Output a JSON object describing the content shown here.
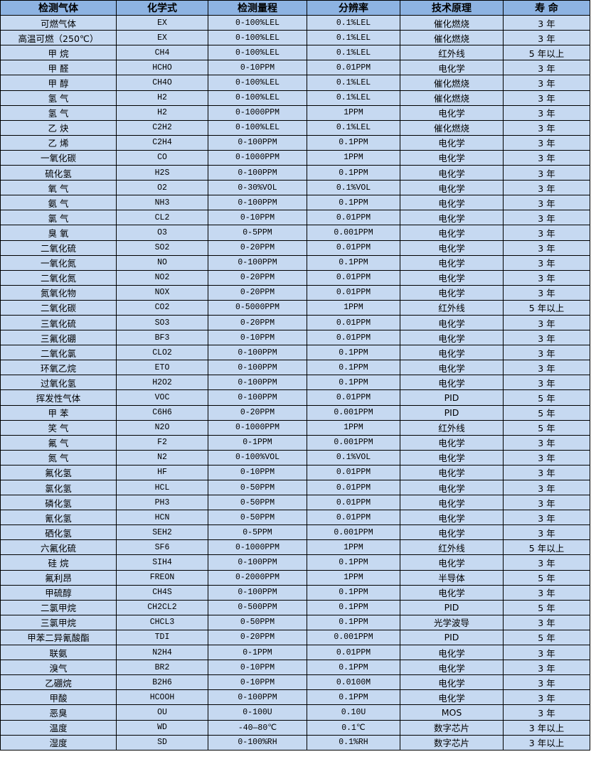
{
  "header": [
    "检测气体",
    "化学式",
    "检测量程",
    "分辨率",
    "技术原理",
    "寿  命"
  ],
  "colors": {
    "header_bg": "#8db3e2",
    "row_bg": "#c6d9f1"
  },
  "rows": [
    [
      "可燃气体",
      "EX",
      "0-100%LEL",
      "0.1%LEL",
      "催化燃烧",
      "3 年"
    ],
    [
      "高温可燃（250℃）",
      "EX",
      "0-100%LEL",
      "0.1%LEL",
      "催化燃烧",
      "3 年"
    ],
    [
      "甲 烷",
      "CH4",
      "0-100%LEL",
      "0.1%LEL",
      "红外线",
      "5 年以上"
    ],
    [
      "甲 醛",
      "HCHO",
      "0-10PPM",
      "0.01PPM",
      "电化学",
      "3 年"
    ],
    [
      "甲 醇",
      "CH4O",
      "0-100%LEL",
      "0.1%LEL",
      "催化燃烧",
      "3 年"
    ],
    [
      "氢 气",
      "H2",
      "0-100%LEL",
      "0.1%LEL",
      "催化燃烧",
      "3 年"
    ],
    [
      "氢 气",
      "H2",
      "0-1000PPM",
      "1PPM",
      "电化学",
      "3 年"
    ],
    [
      "乙 炔",
      "C2H2",
      "0-100%LEL",
      "0.1%LEL",
      "催化燃烧",
      "3 年"
    ],
    [
      "乙 烯",
      "C2H4",
      "0-100PPM",
      "0.1PPM",
      "电化学",
      "3 年"
    ],
    [
      "一氧化碳",
      "CO",
      "0-1000PPM",
      "1PPM",
      "电化学",
      "3 年"
    ],
    [
      "硫化氢",
      "H2S",
      "0-100PPM",
      "0.1PPM",
      "电化学",
      "3 年"
    ],
    [
      "氧 气",
      "O2",
      "0-30%VOL",
      "0.1%VOL",
      "电化学",
      "3 年"
    ],
    [
      "氨 气",
      "NH3",
      "0-100PPM",
      "0.1PPM",
      "电化学",
      "3 年"
    ],
    [
      "氯 气",
      "CL2",
      "0-10PPM",
      "0.01PPM",
      "电化学",
      "3 年"
    ],
    [
      "臭 氧",
      "O3",
      "0-5PPM",
      "0.001PPM",
      "电化学",
      "3 年"
    ],
    [
      "二氧化硫",
      "SO2",
      "0-20PPM",
      "0.01PPM",
      "电化学",
      "3 年"
    ],
    [
      "一氧化氮",
      "NO",
      "0-100PPM",
      "0.1PPM",
      "电化学",
      "3 年"
    ],
    [
      "二氧化氮",
      "NO2",
      "0-20PPM",
      "0.01PPM",
      "电化学",
      "3 年"
    ],
    [
      "氮氧化物",
      "NOX",
      "0-20PPM",
      "0.01PPM",
      "电化学",
      "3 年"
    ],
    [
      "二氧化碳",
      "CO2",
      "0-5000PPM",
      "1PPM",
      "红外线",
      "5 年以上"
    ],
    [
      "三氧化硫",
      "SO3",
      "0-20PPM",
      "0.01PPM",
      "电化学",
      "3 年"
    ],
    [
      "三氟化硼",
      "BF3",
      "0-10PPM",
      "0.01PPM",
      "电化学",
      "3 年"
    ],
    [
      "二氧化氯",
      "CLO2",
      "0-100PPM",
      "0.1PPM",
      "电化学",
      "3 年"
    ],
    [
      "环氧乙烷",
      "ETO",
      "0-100PPM",
      "0.1PPM",
      "电化学",
      "3 年"
    ],
    [
      "过氧化氢",
      "H2O2",
      "0-100PPM",
      "0.1PPM",
      "电化学",
      "3 年"
    ],
    [
      "挥发性气体",
      "VOC",
      "0-100PPM",
      "0.01PPM",
      "PID",
      "5 年"
    ],
    [
      "甲 苯",
      "C6H6",
      "0-20PPM",
      "0.001PPM",
      "PID",
      "5 年"
    ],
    [
      "笑 气",
      "N2O",
      "0-1000PPM",
      "1PPM",
      "红外线",
      "5 年"
    ],
    [
      "氟 气",
      "F2",
      "0-1PPM",
      "0.001PPM",
      "电化学",
      "3 年"
    ],
    [
      "氮 气",
      "N2",
      "0-100%VOL",
      "0.1%VOL",
      "电化学",
      "3 年"
    ],
    [
      "氟化氢",
      "HF",
      "0-10PPM",
      "0.01PPM",
      "电化学",
      "3 年"
    ],
    [
      "氯化氢",
      "HCL",
      "0-50PPM",
      "0.01PPM",
      "电化学",
      "3 年"
    ],
    [
      "磷化氢",
      "PH3",
      "0-50PPM",
      "0.01PPM",
      "电化学",
      "3 年"
    ],
    [
      "氰化氢",
      "HCN",
      "0-50PPM",
      "0.01PPM",
      "电化学",
      "3 年"
    ],
    [
      "硒化氢",
      "SEH2",
      "0-5PPM",
      "0.001PPM",
      "电化学",
      "3 年"
    ],
    [
      "六氟化硫",
      "SF6",
      "0-1000PPM",
      "1PPM",
      "红外线",
      "5 年以上"
    ],
    [
      "硅 烷",
      "SIH4",
      "0-100PPM",
      "0.1PPM",
      "电化学",
      "3 年"
    ],
    [
      "氟利昂",
      "FREON",
      "0-2000PPM",
      "1PPM",
      "半导体",
      "5 年"
    ],
    [
      "甲硫醇",
      "CH4S",
      "0-100PPM",
      "0.1PPM",
      "电化学",
      "3 年"
    ],
    [
      "二氯甲烷",
      "CH2CL2",
      "0-500PPM",
      "0.1PPM",
      "PID",
      "5 年"
    ],
    [
      "三氯甲烷",
      "CHCL3",
      "0-50PPM",
      "0.1PPM",
      "光学波导",
      "3 年"
    ],
    [
      "甲苯二异氰酸酯",
      "TDI",
      "0-20PPM",
      "0.001PPM",
      "PID",
      "5 年"
    ],
    [
      "联氨",
      "N2H4",
      "0-1PPM",
      "0.01PPM",
      "电化学",
      "3 年"
    ],
    [
      "溴气",
      "BR2",
      "0-10PPM",
      "0.1PPM",
      "电化学",
      "3 年"
    ],
    [
      "乙硼烷",
      "B2H6",
      "0-10PPM",
      "0.0100M",
      "电化学",
      "3 年"
    ],
    [
      "甲酸",
      "HCOOH",
      "0-100PPM",
      "0.1PPM",
      "电化学",
      "3 年"
    ],
    [
      "恶臭",
      "OU",
      "0-100U",
      "0.10U",
      "MOS",
      "3 年"
    ],
    [
      "温度",
      "WD",
      "-40—80℃",
      "0.1℃",
      "数字芯片",
      "3 年以上"
    ],
    [
      "湿度",
      "SD",
      "0-100%RH",
      "0.1%RH",
      "数字芯片",
      "3 年以上"
    ]
  ]
}
